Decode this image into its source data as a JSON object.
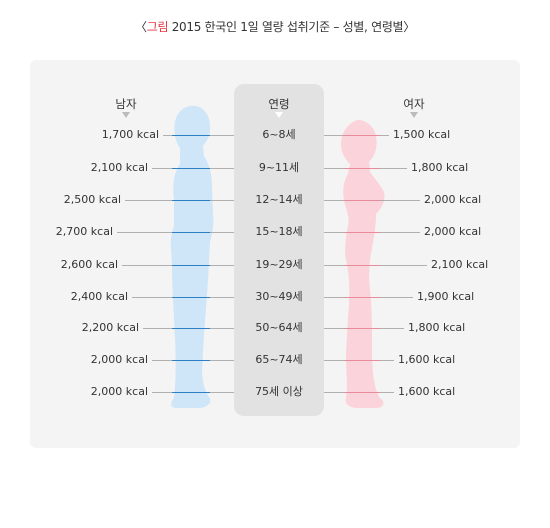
{
  "title": {
    "open_bracket": "〈",
    "prefix": "그림",
    "text": " 2015 한국인 1일 열량 섭취기준 – 성별, 연령별",
    "close_bracket": "〉"
  },
  "headers": {
    "male": "남자",
    "age": "연령",
    "female": "여자"
  },
  "rows": [
    {
      "age": "6~8세",
      "male": "1,700  kcal",
      "female": "1,500  kcal"
    },
    {
      "age": "9~11세",
      "male": "2,100  kcal",
      "female": "1,800  kcal"
    },
    {
      "age": "12~14세",
      "male": "2,500  kcal",
      "female": "2,000  kcal"
    },
    {
      "age": "15~18세",
      "male": "2,700  kcal",
      "female": "2,000  kcal"
    },
    {
      "age": "19~29세",
      "male": "2,600  kcal",
      "female": "2,100  kcal"
    },
    {
      "age": "30~49세",
      "male": "2,400  kcal",
      "female": "1,900  kcal"
    },
    {
      "age": "50~64세",
      "male": "2,200  kcal",
      "female": "1,800  kcal"
    },
    {
      "age": "65~74세",
      "male": "2,000  kcal",
      "female": "1,600  kcal"
    },
    {
      "age": "75세 이상",
      "male": "2,000  kcal",
      "female": "1,600  kcal"
    }
  ],
  "colors": {
    "male_figure": "#cfe6f8",
    "female_figure": "#fbd3da",
    "male_marker": "#2f7fc4",
    "female_marker": "#e88c9c",
    "accent": "#e8363f"
  }
}
